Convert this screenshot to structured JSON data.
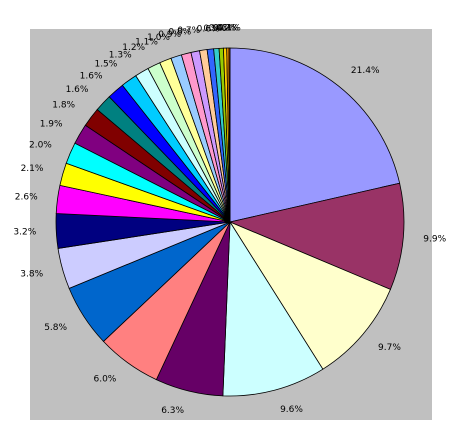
{
  "chart_data": {
    "type": "pie",
    "values": [
      21.4,
      9.9,
      9.7,
      9.6,
      6.3,
      6.0,
      5.8,
      3.8,
      3.2,
      2.6,
      2.1,
      2.0,
      1.9,
      1.8,
      1.6,
      1.6,
      1.5,
      1.3,
      1.2,
      1.1,
      1.0,
      0.9,
      0.8,
      0.7,
      0.6,
      0.5,
      0.4,
      0.3,
      0.2,
      0.1
    ],
    "value_labels": [
      "21.4%",
      "9.9%",
      "9.7%",
      "9.6%",
      "6.3%",
      "6.0%",
      "5.8%",
      "3.8%",
      "3.2%",
      "2.6%",
      "2.1%",
      "2.0%",
      "1.9%",
      "1.8%",
      "1.6%",
      "1.6%",
      "1.5%",
      "1.3%",
      "1.2%",
      "1.1%",
      "1.0%",
      "0.9%",
      "0.8%",
      "0.7%",
      "0.6%",
      "0.5%",
      "0.4%",
      "0.3%",
      "0.2%",
      "0.1%"
    ],
    "colors": [
      "#9999FF",
      "#993366",
      "#FFFFCC",
      "#CCFFFF",
      "#660066",
      "#FF8080",
      "#0066CC",
      "#CCCCFF",
      "#000080",
      "#FF00FF",
      "#FFFF00",
      "#00FFFF",
      "#800080",
      "#800000",
      "#008080",
      "#0000FF",
      "#00CCFF",
      "#CCFFFF",
      "#CCFFCC",
      "#FFFF99",
      "#99CCFF",
      "#FF99CC",
      "#CC99FF",
      "#FFCC99",
      "#3366FF",
      "#33CCCC",
      "#99CC00",
      "#FFCC00",
      "#FF9900",
      "#FF6600"
    ]
  }
}
